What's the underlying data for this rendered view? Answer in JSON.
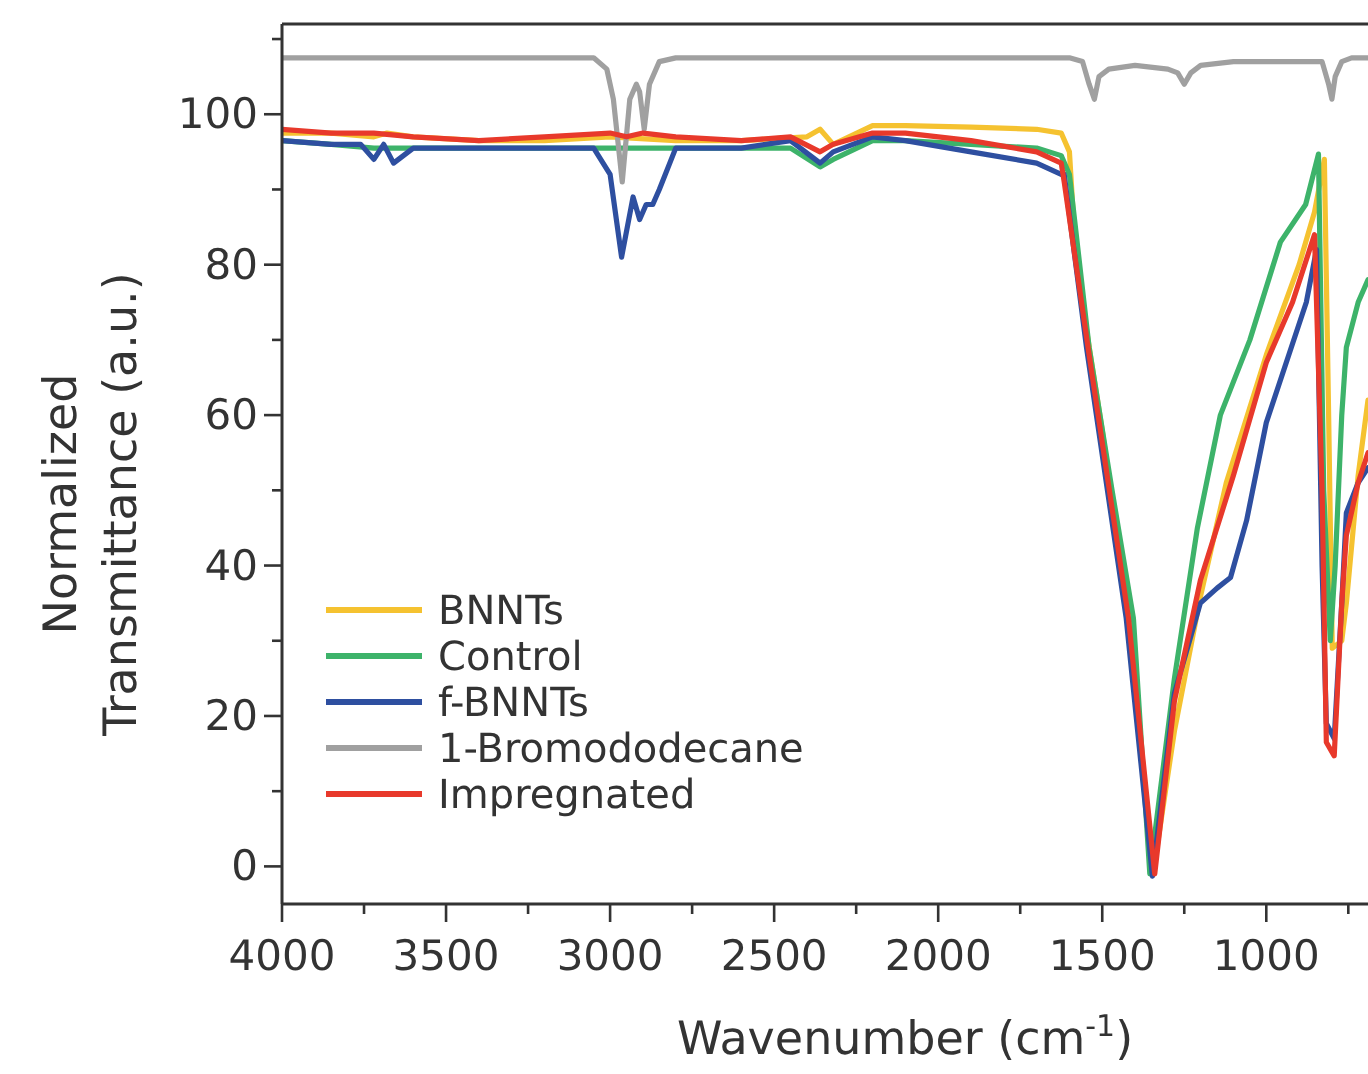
{
  "chart_data": {
    "type": "line",
    "xlabel": "Wavenumber (cm$^{-1}$)",
    "ylabel": "Normalized Transmittance (a.u.)",
    "xlim": [
      4000,
      690
    ],
    "ylim": [
      -5,
      112
    ],
    "xticks": [
      4000,
      {
        "value": 3750,
        "label": null
      },
      3500,
      {
        "value": 3250,
        "label": null
      },
      3000,
      {
        "value": 2750,
        "label": null
      },
      2500,
      {
        "value": 2250,
        "label": null
      },
      2000,
      {
        "value": 1750,
        "label": null
      },
      1500,
      {
        "value": 1250,
        "label": null
      },
      1000,
      {
        "value": 750,
        "label": null
      }
    ],
    "yticks": [
      0,
      {
        "value": 10,
        "label": null
      },
      20,
      {
        "value": 30,
        "label": null
      },
      40,
      {
        "value": 50,
        "label": null
      },
      60,
      {
        "value": 70,
        "label": null
      },
      80,
      {
        "value": 90,
        "label": null
      },
      100,
      {
        "value": 110,
        "label": null
      }
    ],
    "legend": "bottom left",
    "line_style": "solid",
    "marker": "none",
    "grid": false,
    "series": [
      {
        "name": "BNNTs",
        "color": "#f5c230",
        "x": [
          4000,
          3850,
          3720,
          3680,
          3600,
          3400,
          3200,
          3000,
          2800,
          2600,
          2400,
          2360,
          2320,
          2200,
          2100,
          1900,
          1700,
          1625,
          1600,
          1579,
          1500,
          1420,
          1345,
          1280,
          1200,
          1122,
          1000,
          900,
          853,
          823,
          810,
          799,
          770,
          756,
          720,
          690
        ],
        "values": [
          97.5,
          97.5,
          97,
          97.5,
          97,
          96.5,
          96.5,
          97,
          96.5,
          96.5,
          97,
          98,
          96,
          98.5,
          98.5,
          98.3,
          98,
          97.5,
          95,
          80,
          58,
          33,
          -1,
          18,
          36,
          51,
          68,
          80,
          87,
          94,
          60,
          29,
          30,
          35,
          52,
          62
        ]
      },
      {
        "name": "Control",
        "color": "#3db36a",
        "x": [
          4000,
          3850,
          3720,
          3600,
          3400,
          3200,
          3000,
          2800,
          2600,
          2450,
          2360,
          2320,
          2200,
          2100,
          1900,
          1700,
          1625,
          1600,
          1540,
          1470,
          1405,
          1355,
          1280,
          1210,
          1140,
          1050,
          957,
          880,
          841,
          825,
          805,
          790,
          770,
          756,
          720,
          690
        ],
        "values": [
          96.5,
          96,
          95.5,
          95.5,
          95.5,
          95.5,
          95.5,
          95.5,
          95.5,
          95.5,
          93,
          94,
          96.5,
          96.5,
          96,
          95.5,
          94.5,
          92,
          69,
          50,
          33,
          -1,
          25,
          45,
          60,
          70,
          83,
          88,
          94.7,
          50,
          30,
          40,
          60,
          69,
          75,
          78
        ]
      },
      {
        "name": "f-BNNTs",
        "color": "#2e4fa0",
        "x": [
          4000,
          3850,
          3760,
          3720,
          3690,
          3660,
          3600,
          3400,
          3200,
          3050,
          3000,
          2965,
          2930,
          2910,
          2890,
          2870,
          2850,
          2800,
          2600,
          2450,
          2360,
          2320,
          2200,
          2100,
          1900,
          1700,
          1625,
          1616,
          1548,
          1427,
          1347,
          1280,
          1201,
          1150,
          1109,
          1060,
          1000,
          878,
          847,
          830,
          817,
          793,
          770,
          756,
          720,
          690
        ],
        "values": [
          96.5,
          96,
          96,
          94,
          96,
          93.5,
          95.5,
          95.5,
          95.5,
          95.5,
          92,
          81,
          89,
          86,
          88,
          88,
          90,
          95.5,
          95.5,
          96.5,
          93.5,
          95,
          97,
          96.5,
          95,
          93.5,
          92,
          92,
          69,
          33,
          -1.3,
          23,
          35,
          37,
          38.4,
          46,
          59,
          75,
          82,
          40,
          19,
          17,
          35,
          47,
          51,
          53
        ]
      },
      {
        "name": "1-Bromododecane",
        "color": "#a0a0a0",
        "x": [
          4000,
          3800,
          3600,
          3400,
          3200,
          3050,
          3010,
          2990,
          2963,
          2940,
          2920,
          2910,
          2896,
          2880,
          2850,
          2800,
          2600,
          2400,
          2200,
          2000,
          1800,
          1600,
          1560,
          1540,
          1524,
          1510,
          1480,
          1400,
          1300,
          1270,
          1250,
          1230,
          1200,
          1100,
          1000,
          900,
          830,
          810,
          800,
          790,
          770,
          740,
          690
        ],
        "values": [
          107.5,
          107.5,
          107.5,
          107.5,
          107.5,
          107.5,
          106,
          102,
          91,
          102,
          104,
          103,
          98,
          104,
          107,
          107.5,
          107.5,
          107.5,
          107.5,
          107.5,
          107.5,
          107.5,
          107,
          104,
          102,
          105,
          106,
          106.5,
          106,
          105.5,
          104,
          105.5,
          106.5,
          107,
          107,
          107,
          107,
          104,
          102,
          105,
          107,
          107.5,
          107.5
        ]
      },
      {
        "name": "Impregnated",
        "color": "#e8392b",
        "x": [
          4000,
          3850,
          3720,
          3600,
          3400,
          3200,
          3000,
          2950,
          2900,
          2800,
          2600,
          2450,
          2360,
          2320,
          2200,
          2100,
          1900,
          1700,
          1625,
          1616,
          1540,
          1420,
          1340,
          1280,
          1201,
          1100,
          1000,
          920,
          853,
          830,
          817,
          793,
          770,
          756,
          720,
          690
        ],
        "values": [
          98,
          97.5,
          97.5,
          97,
          96.5,
          97,
          97.5,
          97,
          97.5,
          97,
          96.5,
          97,
          95,
          96,
          97.5,
          97.5,
          96.5,
          95,
          93.5,
          91,
          68,
          33,
          -1,
          22,
          38,
          52,
          67,
          75,
          84,
          50,
          16.5,
          14.7,
          35,
          44,
          51,
          55
        ]
      }
    ]
  }
}
